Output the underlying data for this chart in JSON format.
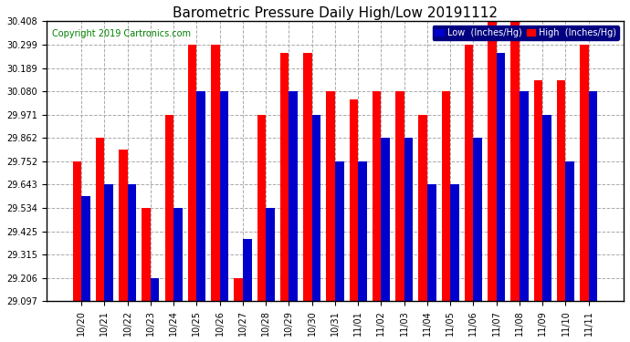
{
  "title": "Barometric Pressure Daily High/Low 20191112",
  "copyright": "Copyright 2019 Cartronics.com",
  "dates": [
    "10/20",
    "10/21",
    "10/22",
    "10/23",
    "10/24",
    "10/25",
    "10/26",
    "10/27",
    "10/28",
    "10/29",
    "10/30",
    "10/31",
    "11/01",
    "11/02",
    "11/03",
    "11/04",
    "11/05",
    "11/06",
    "11/07",
    "11/08",
    "11/09",
    "11/10",
    "11/11"
  ],
  "high": [
    29.752,
    29.862,
    29.808,
    29.534,
    29.971,
    30.299,
    30.299,
    29.206,
    29.971,
    30.262,
    30.262,
    30.08,
    30.044,
    30.08,
    30.08,
    29.971,
    30.08,
    30.299,
    30.408,
    30.408,
    30.134,
    30.134,
    30.299
  ],
  "low": [
    29.588,
    29.643,
    29.643,
    29.206,
    29.534,
    30.08,
    30.08,
    29.39,
    29.534,
    30.08,
    29.971,
    29.752,
    29.752,
    29.862,
    29.862,
    29.643,
    29.643,
    29.862,
    30.262,
    30.08,
    29.971,
    29.752,
    30.08
  ],
  "ylim_low": 29.097,
  "ylim_high": 30.408,
  "yticks": [
    29.097,
    29.206,
    29.315,
    29.425,
    29.534,
    29.643,
    29.752,
    29.862,
    29.971,
    30.08,
    30.189,
    30.299,
    30.408
  ],
  "color_high": "#ff0000",
  "color_low": "#0000cc",
  "bg_color": "#ffffff",
  "grid_color": "#aaaaaa",
  "title_fontsize": 11,
  "copyright_fontsize": 7,
  "bar_width": 0.38
}
